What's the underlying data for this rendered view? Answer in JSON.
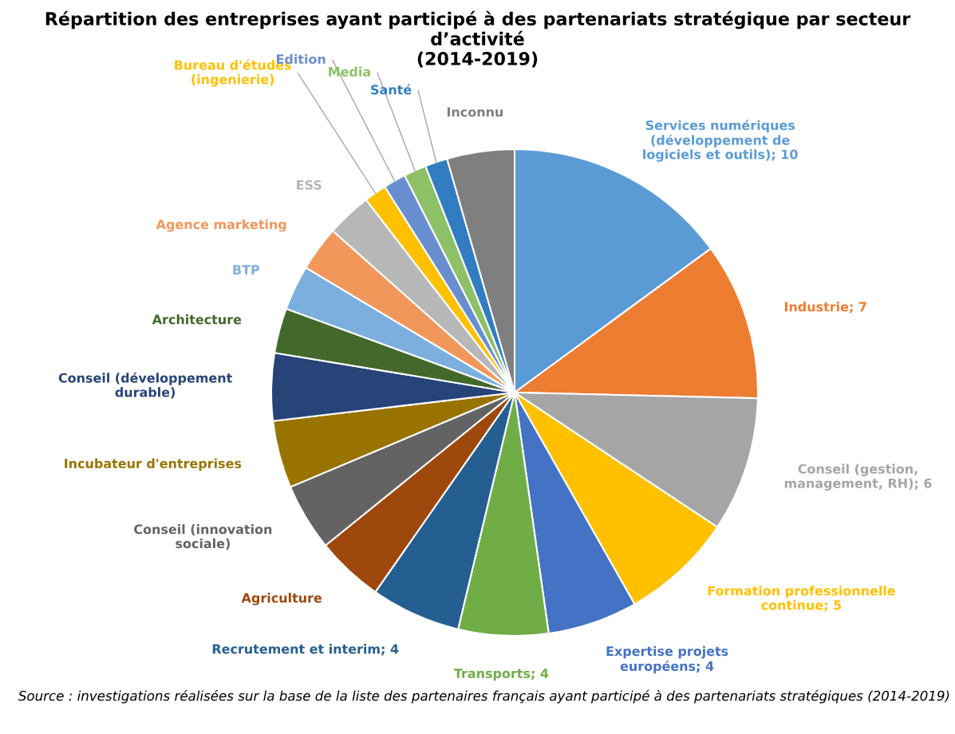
{
  "chart_data": {
    "type": "pie",
    "title": "Répartition des entreprises ayant participé à des partenariats stratégique par secteur d’activité\n(2014-2019)",
    "categories": [
      "Services numériques (développement de logiciels et outils)",
      "Industrie",
      "Conseil (gestion, management, RH)",
      "Formation professionnelle continue",
      "Expertise projets européens",
      "Transports",
      "Recrutement et interim",
      "Agriculture",
      "Conseil (innovation sociale)",
      "Incubateur d'entreprises",
      "Conseil (développement durable)",
      "Architecture",
      "BTP",
      "Agence marketing",
      "ESS",
      "Bureau d'études (ingenierie)",
      "Edition",
      "Media",
      "Santé",
      "Inconnu"
    ],
    "values": [
      10,
      7,
      6,
      5,
      4,
      4,
      4,
      3,
      3,
      3,
      3,
      2,
      2,
      2,
      2,
      1,
      1,
      1,
      1,
      3
    ],
    "value_labels": [
      "10",
      "7",
      "6",
      "5",
      "4",
      "4",
      "4",
      null,
      null,
      null,
      null,
      null,
      null,
      null,
      null,
      null,
      null,
      null,
      null,
      null
    ],
    "colors": [
      "#5b9bd5",
      "#ed7d31",
      "#a5a5a5",
      "#ffc000",
      "#4472c4",
      "#70ad47",
      "#255e91",
      "#9e480e",
      "#636363",
      "#997300",
      "#264478",
      "#43682b",
      "#7cafdd",
      "#f1975a",
      "#b7b7b7",
      "#ffc000",
      "#698ed0",
      "#8cc168",
      "#327dc2",
      "#7f7f7f"
    ],
    "legend": false,
    "annotations": [
      "Source : investigations réalisées sur la base de la liste des partenaires français ayant participé à des partenariats stratégiques (2014-2019)"
    ]
  }
}
